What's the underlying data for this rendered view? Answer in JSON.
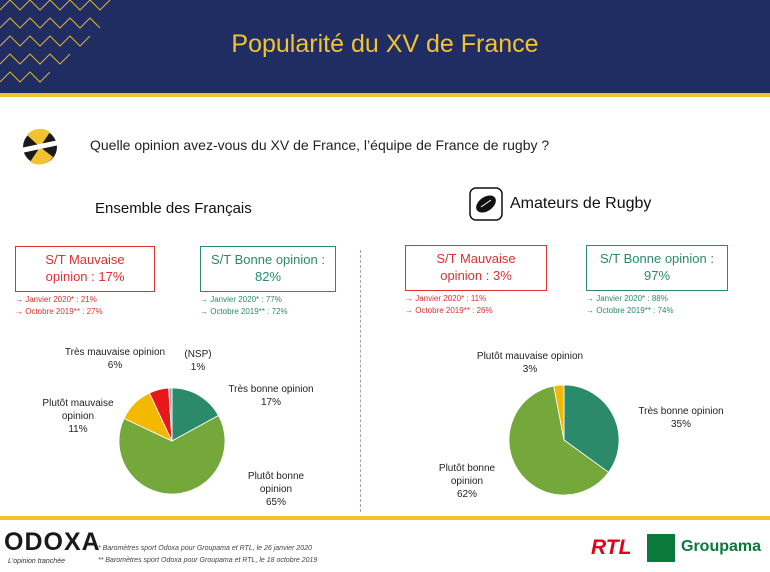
{
  "header": {
    "title": "Popularité du XV de France"
  },
  "question": "Quelle opinion avez-vous du XV de France, l’équipe de France de rugby ?",
  "left": {
    "title": "Ensemble des Français",
    "bad_box": {
      "line1": "S/T Mauvaise",
      "line2": "opinion : 17%"
    },
    "bad_trend": [
      "→ Janvier 2020* : 21%",
      "→ Octobre 2019** : 27%"
    ],
    "good_box": {
      "line1": "S/T Bonne opinion :",
      "line2": "82%"
    },
    "good_trend": [
      "→ Janvier 2020* : 77%",
      "→ Octobre 2019** : 72%"
    ]
  },
  "right": {
    "title": "Amateurs de Rugby",
    "bad_box": {
      "line1": "S/T Mauvaise",
      "line2": "opinion : 3%"
    },
    "bad_trend": [
      "→ Janvier 2020* : 11%",
      "→ Octobre 2019** : 26%"
    ],
    "good_box": {
      "line1": "S/T Bonne opinion :",
      "line2": "97%"
    },
    "good_trend": [
      "→ Janvier 2020* : 88%",
      "→ Octobre 2019** : 74%"
    ]
  },
  "chart_data": [
    {
      "type": "pie",
      "title": "Ensemble des Français",
      "slices": [
        {
          "label": "Très bonne opinion",
          "value": 17,
          "pct": "17%",
          "color": "#2a8a6a"
        },
        {
          "label": "Plutôt bonne opinion",
          "value": 65,
          "pct": "65%",
          "color": "#74a83a"
        },
        {
          "label": "Plutôt mauvaise opinion",
          "value": 11,
          "pct": "11%",
          "color": "#f5b800"
        },
        {
          "label": "Très mauvaise opinion",
          "value": 6,
          "pct": "6%",
          "color": "#e8181a"
        },
        {
          "label": "(NSP)",
          "value": 1,
          "pct": "1%",
          "color": "#a9a9a9"
        }
      ]
    },
    {
      "type": "pie",
      "title": "Amateurs de Rugby",
      "slices": [
        {
          "label": "Très bonne opinion",
          "value": 35,
          "pct": "35%",
          "color": "#2a8a6a"
        },
        {
          "label": "Plutôt bonne opinion",
          "value": 62,
          "pct": "62%",
          "color": "#74a83a"
        },
        {
          "label": "Plutôt mauvaise opinion",
          "value": 3,
          "pct": "3%",
          "color": "#f5b800"
        }
      ]
    }
  ],
  "footer": {
    "brand": "ODOXA",
    "tagline": "L'opinion tranchée",
    "notes": [
      "*   Baromètres sport Odoxa pour Groupama et RTL, le 26 janvier 2020",
      "** Baromètres sport Odoxa pour Groupama et RTL, le 18 octobre 2019"
    ],
    "rtl": "RTL",
    "groupama": "Groupama"
  }
}
